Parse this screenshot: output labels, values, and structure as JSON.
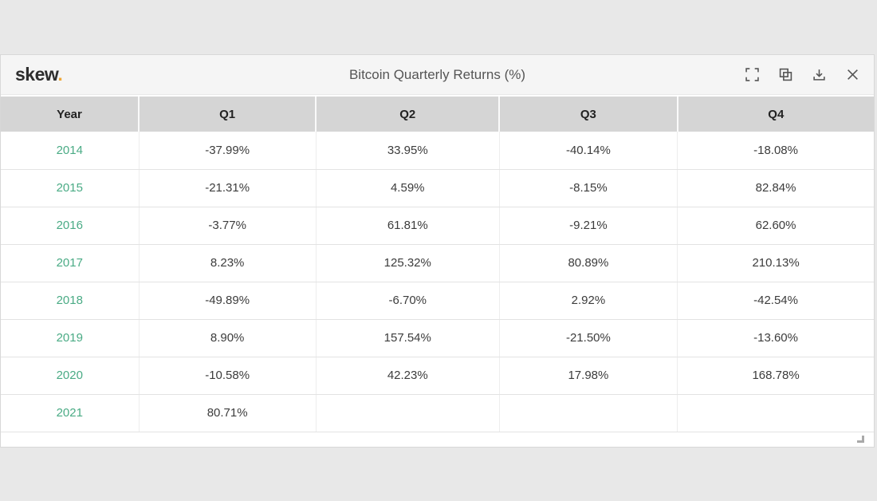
{
  "header": {
    "logo_text": "skew",
    "logo_dot": ".",
    "title": "Bitcoin Quarterly Returns (%)",
    "toolbar_icons": [
      "fullscreen-icon",
      "copy-icon",
      "download-icon",
      "close-icon"
    ]
  },
  "table": {
    "columns": [
      "Year",
      "Q1",
      "Q2",
      "Q3",
      "Q4"
    ],
    "rows": [
      {
        "year": "2014",
        "q1": "-37.99%",
        "q2": "33.95%",
        "q3": "-40.14%",
        "q4": "-18.08%"
      },
      {
        "year": "2015",
        "q1": "-21.31%",
        "q2": "4.59%",
        "q3": "-8.15%",
        "q4": "82.84%"
      },
      {
        "year": "2016",
        "q1": "-3.77%",
        "q2": "61.81%",
        "q3": "-9.21%",
        "q4": "62.60%"
      },
      {
        "year": "2017",
        "q1": "8.23%",
        "q2": "125.32%",
        "q3": "80.89%",
        "q4": "210.13%"
      },
      {
        "year": "2018",
        "q1": "-49.89%",
        "q2": "-6.70%",
        "q3": "2.92%",
        "q4": "-42.54%"
      },
      {
        "year": "2019",
        "q1": "8.90%",
        "q2": "157.54%",
        "q3": "-21.50%",
        "q4": "-13.60%"
      },
      {
        "year": "2020",
        "q1": "-10.58%",
        "q2": "42.23%",
        "q3": "17.98%",
        "q4": "168.78%"
      },
      {
        "year": "2021",
        "q1": "80.71%",
        "q2": "",
        "q3": "",
        "q4": ""
      }
    ]
  },
  "colors": {
    "page_bg": "#e8e8e8",
    "titlebar_bg": "#f5f5f5",
    "colhead_bg": "#d5d5d5",
    "year_link": "#4aab85",
    "logo_dot": "#efa737",
    "title_text": "#555555",
    "cell_text": "#3c3c3c",
    "row_border": "#e3e3e3"
  }
}
